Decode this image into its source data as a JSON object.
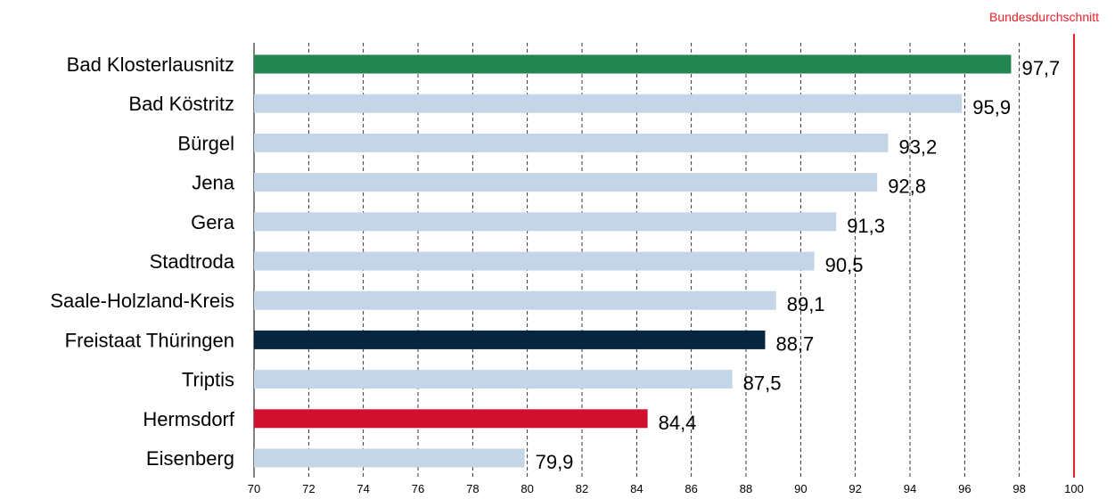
{
  "chart_data": {
    "type": "bar",
    "orientation": "horizontal",
    "categories": [
      "Bad Klosterlausnitz",
      "Bad Köstritz",
      "Bürgel",
      "Jena",
      "Gera",
      "Stadtroda",
      "Saale-Holzland-Kreis",
      "Freistaat Thüringen",
      "Triptis",
      "Hermsdorf",
      "Eisenberg"
    ],
    "values": [
      97.7,
      95.9,
      93.2,
      92.8,
      91.3,
      90.5,
      89.1,
      88.7,
      87.5,
      84.4,
      79.9
    ],
    "value_labels": [
      "97,7",
      "95,9",
      "93,2",
      "92,8",
      "91,3",
      "90,5",
      "89,1",
      "88,7",
      "87,5",
      "84,4",
      "79,9"
    ],
    "bar_colors": [
      "#228552",
      "#c5d5e8",
      "#c5d5e8",
      "#c5d5e8",
      "#c5d5e8",
      "#c5d5e8",
      "#c5d5e8",
      "#06263f",
      "#c5d5e8",
      "#d11030",
      "#c5d5e8"
    ],
    "xlim": [
      70,
      100
    ],
    "xticks": [
      70,
      72,
      74,
      76,
      78,
      80,
      82,
      84,
      86,
      88,
      90,
      92,
      94,
      96,
      98,
      100
    ],
    "grid": true,
    "reference_line": {
      "label": "Bundesdurchschnitt",
      "value": 100,
      "color": "#e8202a"
    }
  }
}
